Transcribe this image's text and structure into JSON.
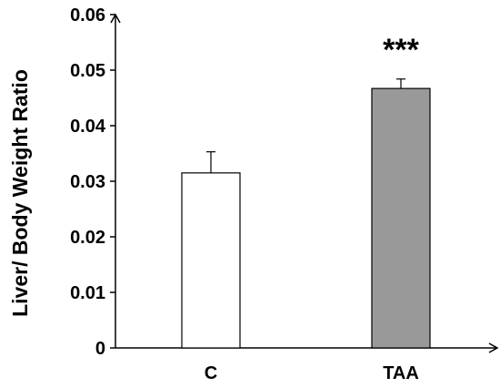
{
  "chart_data": {
    "type": "bar",
    "title": "",
    "xlabel": "",
    "ylabel": "Liver/ Body Weight Ratio",
    "ylim": [
      0,
      0.06
    ],
    "yticks": [
      "0",
      "0.01",
      "0.02",
      "0.03",
      "0.04",
      "0.05",
      "0.06"
    ],
    "categories": [
      "C",
      "TAA"
    ],
    "series": [
      {
        "values": [
          0.0315,
          0.0467
        ],
        "errors": [
          0.0038,
          0.0017
        ],
        "colors": [
          "#ffffff",
          "#999999"
        ]
      }
    ],
    "annotations": [
      {
        "category": "TAA",
        "text": "***"
      }
    ],
    "grid": false,
    "legend": "none"
  }
}
